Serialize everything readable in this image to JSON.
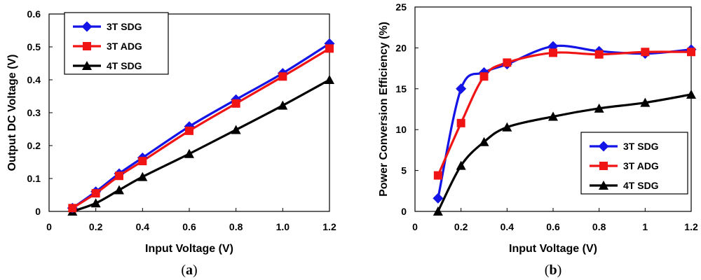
{
  "chart_data": [
    {
      "type": "line",
      "panel": "a",
      "title": "",
      "xlabel": "Input Voltage (V)",
      "ylabel": "Output DC  Voltage (V)",
      "xlim": [
        0,
        1.2
      ],
      "ylim": [
        0,
        0.6
      ],
      "xticks": [
        0,
        0.2,
        0.4,
        0.6,
        0.8,
        1.0,
        1.2
      ],
      "xtick_labels": [
        "0",
        "0.2",
        "0.4",
        "0.6",
        "0.8",
        "1.0",
        "1.2"
      ],
      "yticks": [
        0,
        0.1,
        0.2,
        0.3,
        0.4,
        0.5,
        0.6
      ],
      "ytick_labels": [
        "0",
        "0.1",
        "0.2",
        "0.3",
        "0.4",
        "0.5",
        "0.6"
      ],
      "legend_position": "top-left",
      "grid": false,
      "series": [
        {
          "name": "3T SDG",
          "color": "#1414e6",
          "marker": "diamond",
          "x": [
            0.1,
            0.2,
            0.3,
            0.4,
            0.6,
            0.8,
            1.0,
            1.2
          ],
          "y": [
            0.01,
            0.06,
            0.115,
            0.163,
            0.258,
            0.34,
            0.42,
            0.51
          ]
        },
        {
          "name": "3T ADG",
          "color": "#f01414",
          "marker": "square",
          "x": [
            0.1,
            0.2,
            0.3,
            0.4,
            0.6,
            0.8,
            1.0,
            1.2
          ],
          "y": [
            0.01,
            0.055,
            0.108,
            0.153,
            0.245,
            0.328,
            0.41,
            0.495
          ]
        },
        {
          "name": "4T SDG",
          "color": "#000000",
          "marker": "triangle",
          "x": [
            0.1,
            0.2,
            0.3,
            0.4,
            0.6,
            0.8,
            1.0,
            1.2
          ],
          "y": [
            0.0,
            0.025,
            0.065,
            0.105,
            0.175,
            0.248,
            0.322,
            0.4
          ]
        }
      ]
    },
    {
      "type": "line",
      "panel": "b",
      "title": "",
      "xlabel": "Input Voltage (V)",
      "ylabel": "Power Conversion Efficiency (%)",
      "xlim": [
        0,
        1.2
      ],
      "ylim": [
        0,
        25
      ],
      "xticks": [
        0,
        0.2,
        0.4,
        0.6,
        0.8,
        1.0,
        1.2
      ],
      "xtick_labels": [
        "0",
        "0.2",
        "0.4",
        "0.6",
        "0.8",
        "1",
        "1.2"
      ],
      "yticks": [
        0,
        5,
        10,
        15,
        20,
        25
      ],
      "ytick_labels": [
        "0",
        "5",
        "10",
        "15",
        "20",
        "25"
      ],
      "legend_position": "bottom-right",
      "grid": false,
      "series": [
        {
          "name": "3T SDG",
          "color": "#1414e6",
          "marker": "diamond",
          "x": [
            0.1,
            0.2,
            0.3,
            0.4,
            0.6,
            0.8,
            1.0,
            1.2
          ],
          "y": [
            1.6,
            15.0,
            17.0,
            18.0,
            20.2,
            19.6,
            19.3,
            19.8
          ]
        },
        {
          "name": "3T ADG",
          "color": "#f01414",
          "marker": "square",
          "x": [
            0.1,
            0.2,
            0.3,
            0.4,
            0.6,
            0.8,
            1.0,
            1.2
          ],
          "y": [
            4.4,
            10.8,
            16.5,
            18.2,
            19.4,
            19.2,
            19.5,
            19.5
          ]
        },
        {
          "name": "4T SDG",
          "color": "#000000",
          "marker": "triangle",
          "x": [
            0.1,
            0.2,
            0.3,
            0.4,
            0.6,
            0.8,
            1.0,
            1.2
          ],
          "y": [
            0.0,
            5.6,
            8.5,
            10.3,
            11.6,
            12.6,
            13.3,
            14.3
          ]
        }
      ]
    }
  ]
}
